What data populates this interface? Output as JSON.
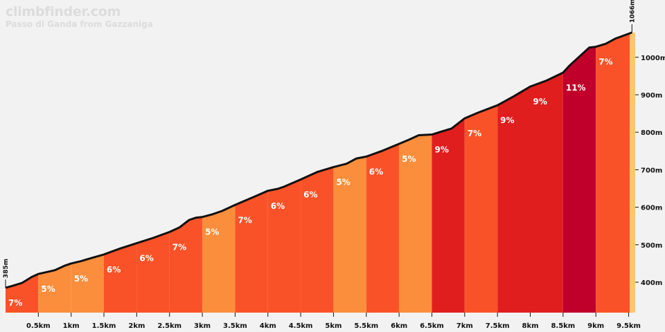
{
  "header": {
    "brand": "climbfinder.com",
    "subtitle": "Passo di Ganda from Gazzaniga"
  },
  "colors": {
    "5": "#fa8e3c",
    "6": "#fa5228",
    "7": "#fa5228",
    "9": "#e01e1e",
    "11": "#c0002a",
    "outline": "#111111",
    "axis_right": "#fec570",
    "background": "#f2f2f2"
  },
  "chart_data": {
    "type": "area",
    "title": "Passo di Ganda from Gazzaniga",
    "xlabel": "",
    "ylabel": "",
    "x_unit": "km",
    "y_unit": "m",
    "xlim": [
      0,
      9.6
    ],
    "ylim": [
      315,
      1160
    ],
    "start_label": "385m",
    "end_label": "1066m",
    "x_ticks": [
      {
        "value": 0.5,
        "label": "0.5km"
      },
      {
        "value": 1.0,
        "label": "1km"
      },
      {
        "value": 1.5,
        "label": "1.5km"
      },
      {
        "value": 2.0,
        "label": "2km"
      },
      {
        "value": 2.5,
        "label": "2.5km"
      },
      {
        "value": 3.0,
        "label": "3km"
      },
      {
        "value": 3.5,
        "label": "3.5km"
      },
      {
        "value": 4.0,
        "label": "4km"
      },
      {
        "value": 4.5,
        "label": "4.5km"
      },
      {
        "value": 5.0,
        "label": "5km"
      },
      {
        "value": 5.5,
        "label": "5.5km"
      },
      {
        "value": 6.0,
        "label": "6km"
      },
      {
        "value": 6.5,
        "label": "6.5km"
      },
      {
        "value": 7.0,
        "label": "7km"
      },
      {
        "value": 7.5,
        "label": "7.5km"
      },
      {
        "value": 8.0,
        "label": "8km"
      },
      {
        "value": 8.5,
        "label": "8.5km"
      },
      {
        "value": 9.0,
        "label": "9km"
      },
      {
        "value": 9.5,
        "label": "9.5km"
      }
    ],
    "y_ticks": [
      {
        "value": 400,
        "label": "400m"
      },
      {
        "value": 500,
        "label": "500m"
      },
      {
        "value": 600,
        "label": "600m"
      },
      {
        "value": 700,
        "label": "700m"
      },
      {
        "value": 800,
        "label": "800m"
      },
      {
        "value": 900,
        "label": "900m"
      },
      {
        "value": 1000,
        "label": "1000m"
      }
    ],
    "segments": [
      {
        "start": 0.0,
        "end": 0.5,
        "gradient": 7,
        "label": "7%"
      },
      {
        "start": 0.5,
        "end": 1.0,
        "gradient": 5,
        "label": "5%"
      },
      {
        "start": 1.0,
        "end": 1.5,
        "gradient": 5,
        "label": "5%"
      },
      {
        "start": 1.5,
        "end": 2.0,
        "gradient": 6,
        "label": "6%"
      },
      {
        "start": 2.0,
        "end": 2.5,
        "gradient": 6,
        "label": "6%"
      },
      {
        "start": 2.5,
        "end": 3.0,
        "gradient": 7,
        "label": "7%"
      },
      {
        "start": 3.0,
        "end": 3.5,
        "gradient": 5,
        "label": "5%"
      },
      {
        "start": 3.5,
        "end": 4.0,
        "gradient": 7,
        "label": "7%"
      },
      {
        "start": 4.0,
        "end": 4.5,
        "gradient": 6,
        "label": "6%"
      },
      {
        "start": 4.5,
        "end": 5.0,
        "gradient": 6,
        "label": "6%"
      },
      {
        "start": 5.0,
        "end": 5.5,
        "gradient": 5,
        "label": "5%"
      },
      {
        "start": 5.5,
        "end": 6.0,
        "gradient": 6,
        "label": "6%"
      },
      {
        "start": 6.0,
        "end": 6.5,
        "gradient": 5,
        "label": "5%"
      },
      {
        "start": 6.5,
        "end": 7.0,
        "gradient": 9,
        "label": "9%"
      },
      {
        "start": 7.0,
        "end": 7.5,
        "gradient": 7,
        "label": "7%"
      },
      {
        "start": 7.5,
        "end": 8.0,
        "gradient": 9,
        "label": "9%"
      },
      {
        "start": 8.0,
        "end": 8.5,
        "gradient": 9,
        "label": "9%"
      },
      {
        "start": 8.5,
        "end": 9.0,
        "gradient": 11,
        "label": "11%"
      },
      {
        "start": 9.0,
        "end": 9.55,
        "gradient": 7,
        "label": "7%"
      }
    ],
    "profile": [
      [
        0.0,
        385
      ],
      [
        0.1,
        390
      ],
      [
        0.25,
        398
      ],
      [
        0.4,
        414
      ],
      [
        0.5,
        422
      ],
      [
        0.6,
        426
      ],
      [
        0.75,
        432
      ],
      [
        0.9,
        444
      ],
      [
        1.0,
        450
      ],
      [
        1.15,
        456
      ],
      [
        1.3,
        464
      ],
      [
        1.5,
        474
      ],
      [
        1.75,
        490
      ],
      [
        2.0,
        504
      ],
      [
        2.25,
        518
      ],
      [
        2.5,
        534
      ],
      [
        2.65,
        546
      ],
      [
        2.8,
        566
      ],
      [
        2.9,
        572
      ],
      [
        3.0,
        574
      ],
      [
        3.15,
        581
      ],
      [
        3.3,
        590
      ],
      [
        3.5,
        606
      ],
      [
        3.75,
        625
      ],
      [
        4.0,
        644
      ],
      [
        4.15,
        649
      ],
      [
        4.25,
        655
      ],
      [
        4.5,
        674
      ],
      [
        4.75,
        694
      ],
      [
        5.0,
        707
      ],
      [
        5.2,
        716
      ],
      [
        5.35,
        730
      ],
      [
        5.5,
        735
      ],
      [
        5.75,
        751
      ],
      [
        6.0,
        769
      ],
      [
        6.15,
        780
      ],
      [
        6.3,
        792
      ],
      [
        6.5,
        794
      ],
      [
        6.65,
        802
      ],
      [
        6.8,
        810
      ],
      [
        7.0,
        837
      ],
      [
        7.2,
        852
      ],
      [
        7.5,
        872
      ],
      [
        7.75,
        896
      ],
      [
        8.0,
        922
      ],
      [
        8.25,
        938
      ],
      [
        8.5,
        959
      ],
      [
        8.6,
        978
      ],
      [
        8.75,
        1002
      ],
      [
        8.9,
        1026
      ],
      [
        9.0,
        1028
      ],
      [
        9.15,
        1036
      ],
      [
        9.3,
        1050
      ],
      [
        9.55,
        1066
      ]
    ]
  }
}
